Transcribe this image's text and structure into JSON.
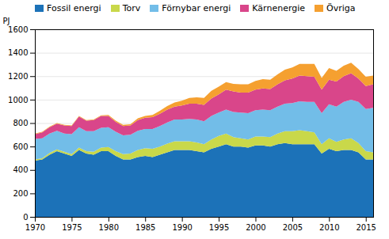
{
  "chart_data": {
    "type": "area",
    "stacked": true,
    "x": [
      1970,
      1971,
      1972,
      1973,
      1974,
      1975,
      1976,
      1977,
      1978,
      1979,
      1980,
      1981,
      1982,
      1983,
      1984,
      1985,
      1986,
      1987,
      1988,
      1989,
      1990,
      1991,
      1992,
      1993,
      1994,
      1995,
      1996,
      1997,
      1998,
      1999,
      2000,
      2001,
      2002,
      2003,
      2004,
      2005,
      2006,
      2007,
      2008,
      2009,
      2010,
      2011,
      2012,
      2013,
      2014,
      2015,
      2016
    ],
    "series": [
      {
        "name": "Fossil energi",
        "color": "#1c72b8",
        "values": [
          480,
          490,
          530,
          560,
          540,
          520,
          570,
          540,
          530,
          560,
          560,
          520,
          490,
          490,
          510,
          520,
          510,
          530,
          550,
          570,
          570,
          570,
          560,
          550,
          580,
          600,
          620,
          600,
          600,
          590,
          610,
          610,
          600,
          620,
          630,
          620,
          620,
          620,
          620,
          540,
          580,
          560,
          570,
          570,
          550,
          490,
          490
        ]
      },
      {
        "name": "Torv",
        "color": "#c9d84a",
        "values": [
          10,
          10,
          15,
          15,
          15,
          15,
          20,
          20,
          25,
          30,
          35,
          40,
          45,
          50,
          60,
          65,
          70,
          70,
          75,
          75,
          75,
          75,
          75,
          70,
          80,
          90,
          90,
          80,
          70,
          70,
          75,
          75,
          80,
          90,
          100,
          110,
          120,
          110,
          100,
          80,
          90,
          80,
          90,
          100,
          80,
          70,
          60
        ]
      },
      {
        "name": "Förnybar energi",
        "color": "#72bde8",
        "values": [
          175,
          170,
          165,
          160,
          155,
          170,
          175,
          170,
          175,
          170,
          170,
          165,
          160,
          160,
          165,
          165,
          170,
          175,
          180,
          185,
          185,
          190,
          195,
          195,
          200,
          200,
          205,
          215,
          220,
          225,
          225,
          230,
          230,
          230,
          235,
          240,
          245,
          250,
          260,
          265,
          290,
          300,
          320,
          330,
          350,
          360,
          380
        ]
      },
      {
        "name": "Kärnenergie",
        "color": "#d9468a",
        "values": [
          40,
          50,
          55,
          60,
          70,
          70,
          90,
          90,
          95,
          100,
          95,
          85,
          80,
          80,
          90,
          95,
          100,
          105,
          110,
          110,
          120,
          130,
          135,
          140,
          150,
          155,
          170,
          175,
          170,
          175,
          175,
          180,
          180,
          190,
          200,
          210,
          220,
          220,
          215,
          200,
          210,
          215,
          220,
          225,
          200,
          195,
          200
        ]
      },
      {
        "name": "Övriga",
        "color": "#f5a030",
        "values": [
          5,
          5,
          5,
          5,
          5,
          5,
          5,
          5,
          5,
          5,
          10,
          10,
          10,
          10,
          15,
          15,
          20,
          25,
          30,
          35,
          40,
          50,
          55,
          60,
          65,
          65,
          65,
          65,
          70,
          70,
          75,
          80,
          80,
          85,
          90,
          95,
          100,
          105,
          110,
          100,
          100,
          90,
          90,
          90,
          80,
          80,
          75
        ]
      }
    ],
    "ylabel": "PJ",
    "xlim": [
      1970,
      2016
    ],
    "xticks": [
      1970,
      1975,
      1980,
      1985,
      1990,
      1995,
      2000,
      2005,
      2010,
      2015
    ],
    "ylim": [
      0,
      1600
    ],
    "yticks": [
      0,
      200,
      400,
      600,
      800,
      1000,
      1200,
      1400,
      1600
    ],
    "grid": "y",
    "legend": "upper left"
  }
}
